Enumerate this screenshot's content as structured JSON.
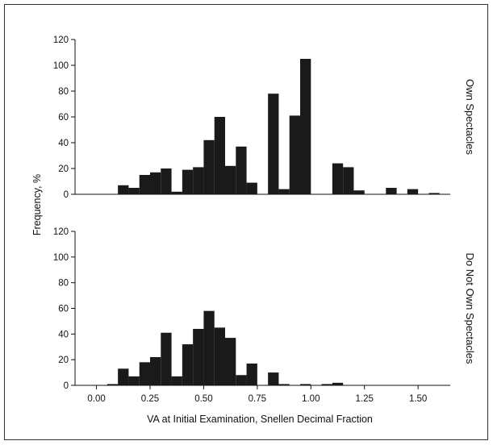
{
  "chart_data": {
    "type": "bar",
    "xlabel": "VA at Initial Examination, Snellen Decimal Fraction",
    "ylabel": "Frequency, %",
    "bin_width": 0.05,
    "x_ticks": [
      "0.00",
      "0.25",
      "0.50",
      "0.75",
      "1.00",
      "1.25",
      "1.50"
    ],
    "x_tick_values": [
      0,
      0.25,
      0.5,
      0.75,
      1.0,
      1.25,
      1.5
    ],
    "xlim": [
      -0.1,
      1.65
    ],
    "panels": [
      {
        "label": "Own Spectacles",
        "ylim": [
          0,
          120
        ],
        "y_ticks": [
          "0",
          "20",
          "40",
          "60",
          "80",
          "100",
          "120"
        ],
        "y_tick_values": [
          0,
          20,
          40,
          60,
          80,
          100,
          120
        ],
        "bins": [
          {
            "x": 0.1,
            "y": 7
          },
          {
            "x": 0.15,
            "y": 5
          },
          {
            "x": 0.2,
            "y": 15
          },
          {
            "x": 0.25,
            "y": 17
          },
          {
            "x": 0.3,
            "y": 20
          },
          {
            "x": 0.35,
            "y": 2
          },
          {
            "x": 0.4,
            "y": 19
          },
          {
            "x": 0.45,
            "y": 21
          },
          {
            "x": 0.5,
            "y": 42
          },
          {
            "x": 0.55,
            "y": 60
          },
          {
            "x": 0.6,
            "y": 22
          },
          {
            "x": 0.65,
            "y": 37
          },
          {
            "x": 0.7,
            "y": 9
          },
          {
            "x": 0.8,
            "y": 78
          },
          {
            "x": 0.85,
            "y": 4
          },
          {
            "x": 0.9,
            "y": 61
          },
          {
            "x": 0.95,
            "y": 105
          },
          {
            "x": 1.1,
            "y": 24
          },
          {
            "x": 1.15,
            "y": 21
          },
          {
            "x": 1.2,
            "y": 3
          },
          {
            "x": 1.35,
            "y": 5
          },
          {
            "x": 1.45,
            "y": 4
          },
          {
            "x": 1.55,
            "y": 1
          }
        ]
      },
      {
        "label": "Do Not Own Spectacles",
        "ylim": [
          0,
          120
        ],
        "y_ticks": [
          "0",
          "20",
          "40",
          "60",
          "80",
          "100",
          "120"
        ],
        "y_tick_values": [
          0,
          20,
          40,
          60,
          80,
          100,
          120
        ],
        "bins": [
          {
            "x": 0.05,
            "y": 1
          },
          {
            "x": 0.1,
            "y": 13
          },
          {
            "x": 0.15,
            "y": 7
          },
          {
            "x": 0.2,
            "y": 18
          },
          {
            "x": 0.25,
            "y": 22
          },
          {
            "x": 0.3,
            "y": 41
          },
          {
            "x": 0.35,
            "y": 7
          },
          {
            "x": 0.4,
            "y": 32
          },
          {
            "x": 0.45,
            "y": 44
          },
          {
            "x": 0.5,
            "y": 58
          },
          {
            "x": 0.55,
            "y": 45
          },
          {
            "x": 0.6,
            "y": 37
          },
          {
            "x": 0.65,
            "y": 8
          },
          {
            "x": 0.7,
            "y": 17
          },
          {
            "x": 0.8,
            "y": 10
          },
          {
            "x": 0.85,
            "y": 1
          },
          {
            "x": 0.95,
            "y": 1
          },
          {
            "x": 1.05,
            "y": 1
          },
          {
            "x": 1.1,
            "y": 2
          }
        ]
      }
    ]
  }
}
